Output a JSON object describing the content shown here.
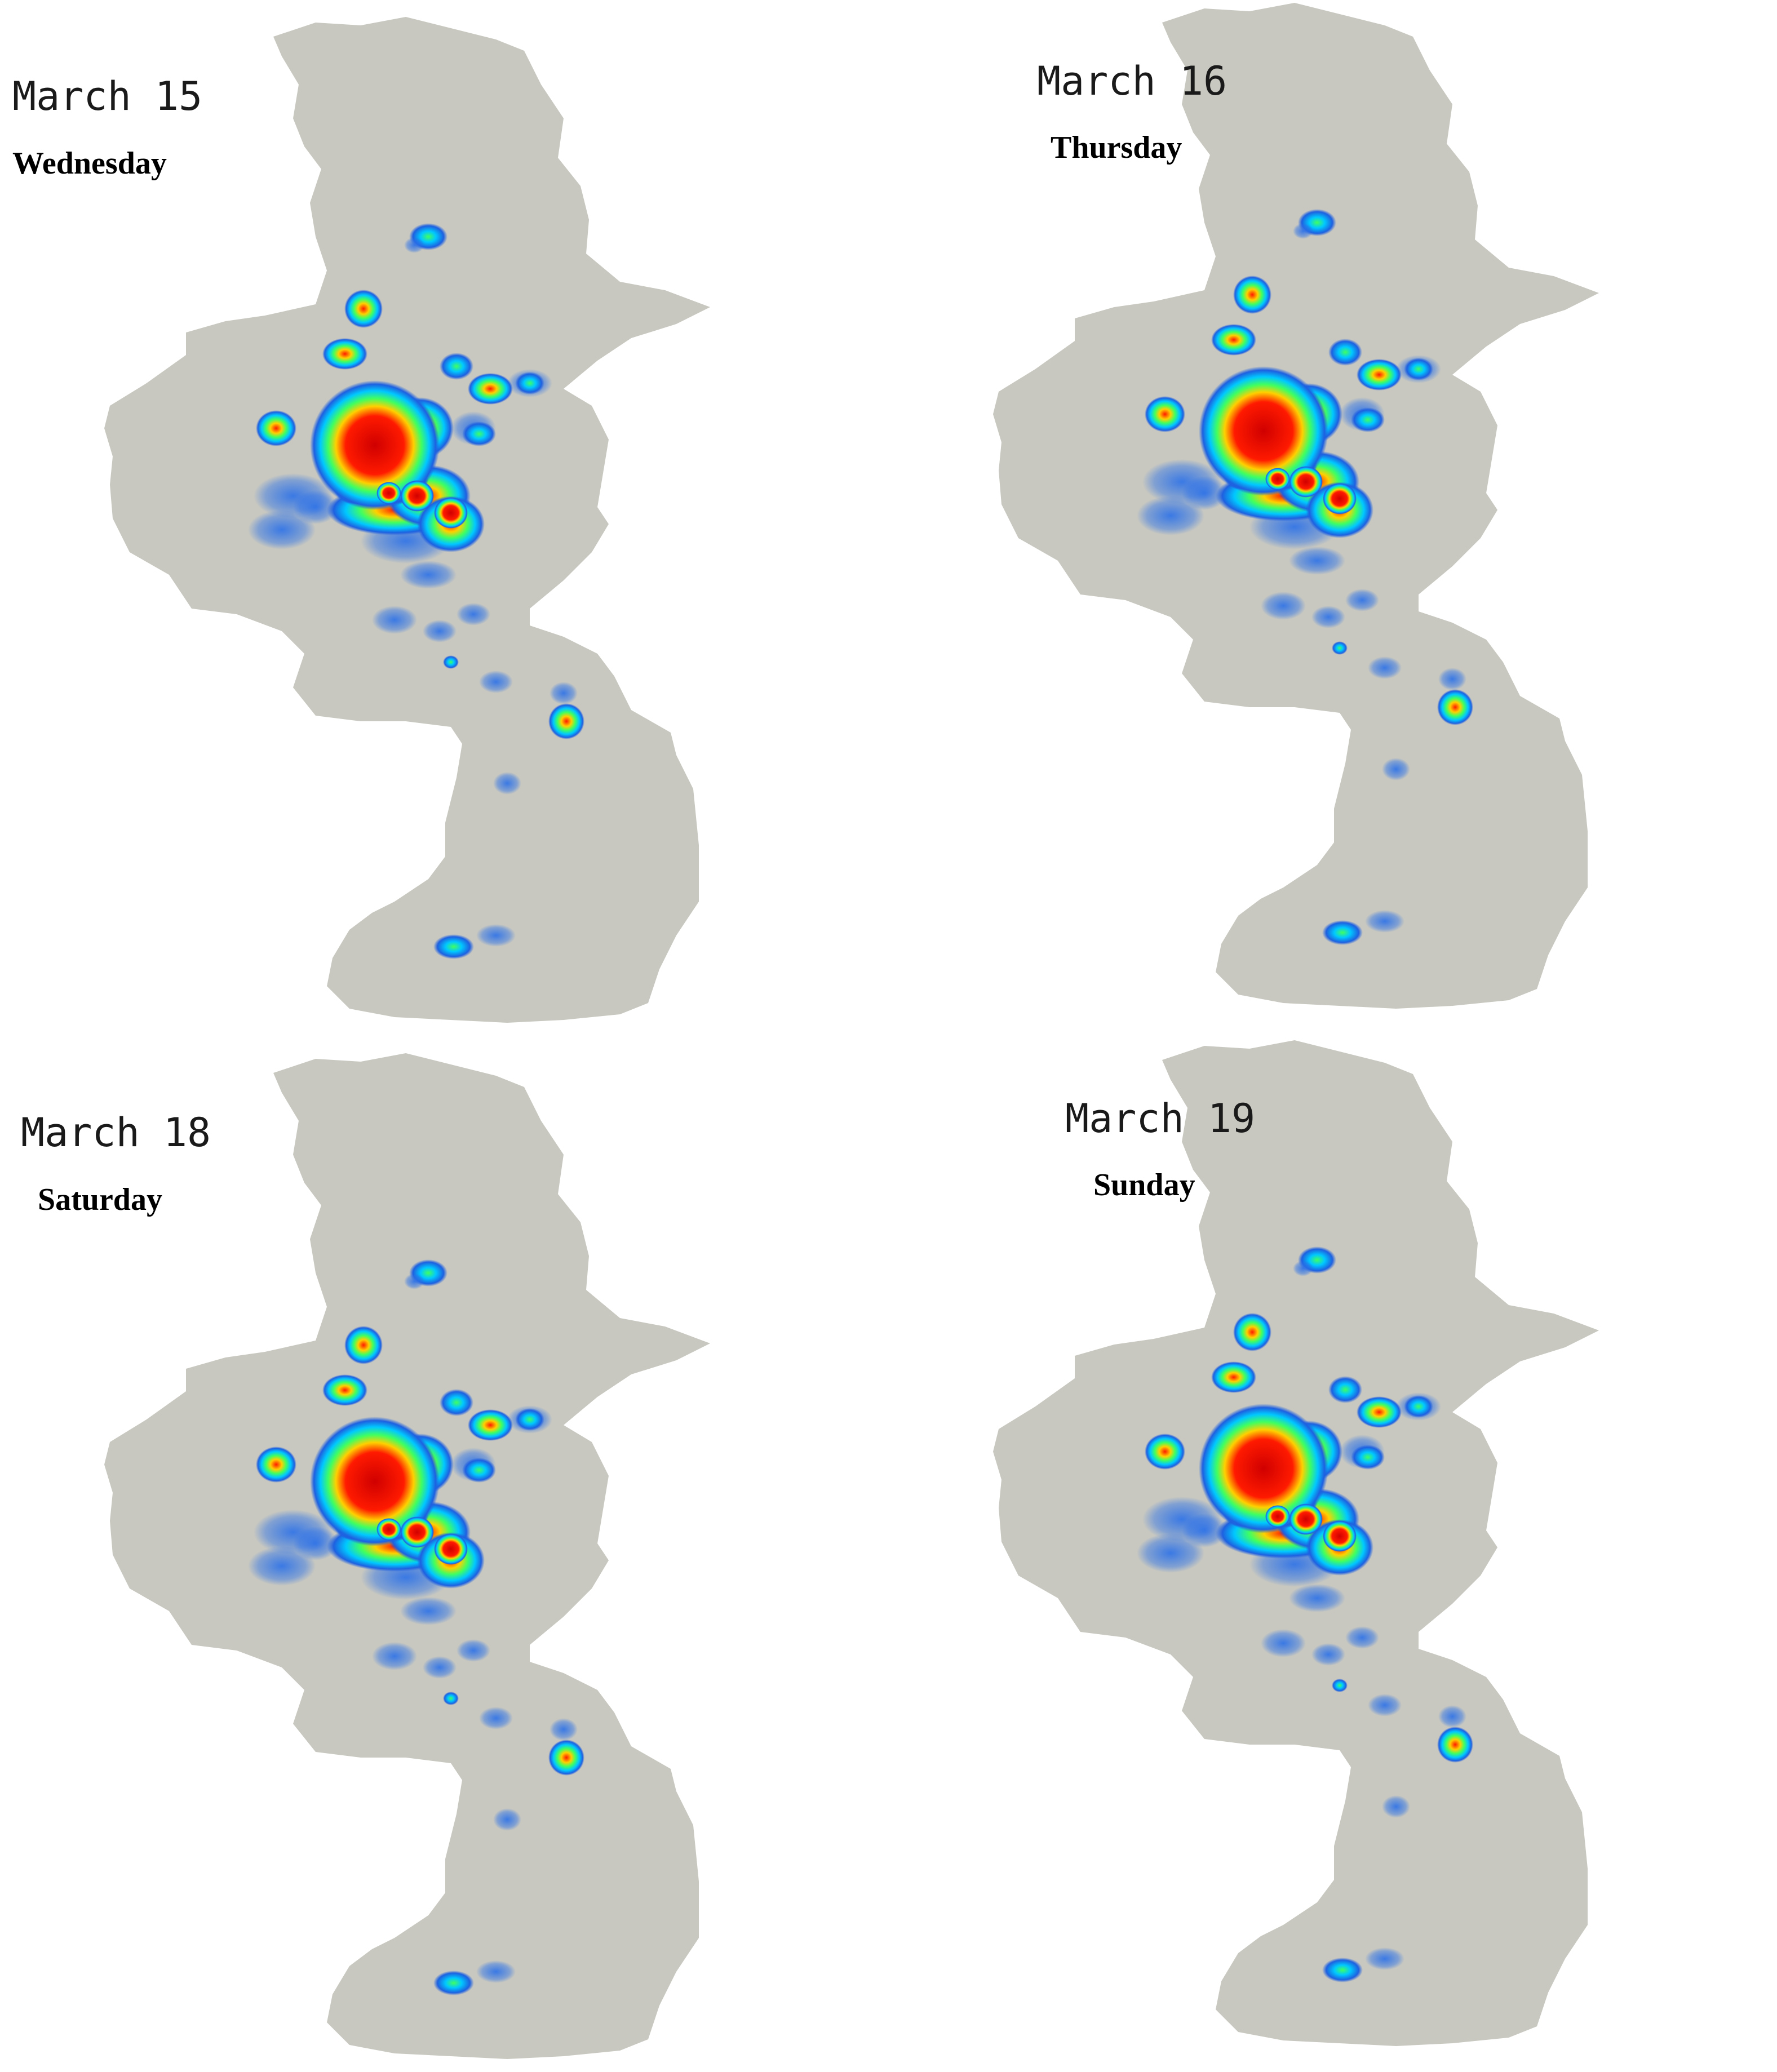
{
  "panels": [
    {
      "date": "March 15",
      "weekday": "Wednesday"
    },
    {
      "date": "March 16",
      "weekday": "Thursday"
    },
    {
      "date": "March 18",
      "weekday": "Saturday"
    },
    {
      "date": "March 19",
      "weekday": "Sunday"
    }
  ],
  "map": {
    "region_fill": "#c8c8c0",
    "heat_colors": [
      "#1e60e0",
      "#00c8ff",
      "#40ff60",
      "#ffd000",
      "#ff0000"
    ]
  }
}
